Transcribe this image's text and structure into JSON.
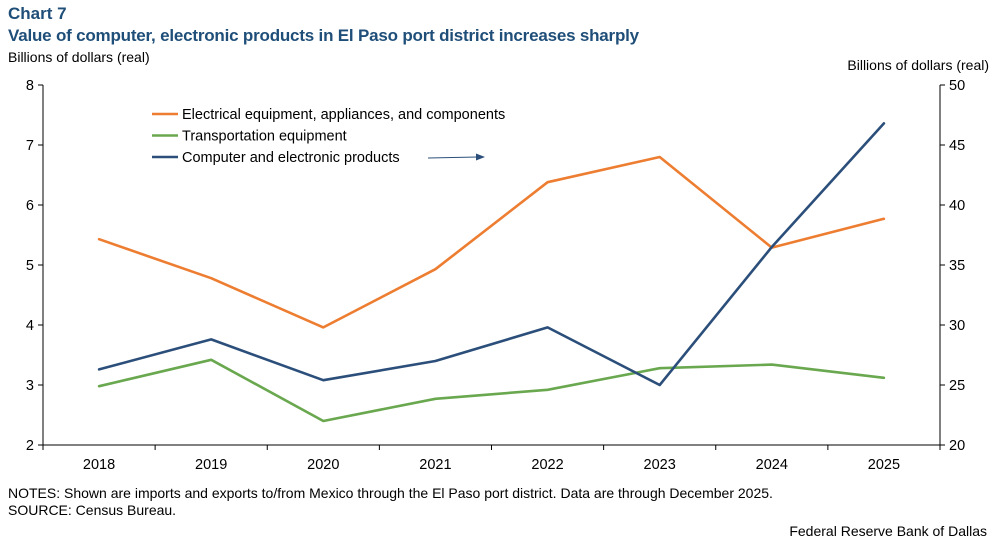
{
  "header": {
    "chart_number": "Chart 7",
    "title": "Value of computer, electronic products in El Paso port district increases sharply"
  },
  "footer": {
    "notes": "NOTES: Shown are imports and exports to/from Mexico through the El Paso port district. Data are  through December 2025.",
    "source": "SOURCE: Census Bureau.",
    "credit": "Federal Reserve Bank of Dallas"
  },
  "colors": {
    "title": "#1f4e79",
    "electrical": "#ed7d31",
    "transportation": "#6aa84f",
    "computer": "#2b4f7a",
    "axis": "#000000"
  },
  "chart_data": {
    "type": "line",
    "title": "Value of computer, electronic products in El Paso port district increases sharply",
    "categories": [
      "2018",
      "2019",
      "2020",
      "2021",
      "2022",
      "2023",
      "2024",
      "2025"
    ],
    "ylabel_left": "Billions of dollars (real)",
    "ylabel_right": "Billions of dollars (real)",
    "ylim_left": [
      2,
      8
    ],
    "ylim_right": [
      20,
      50
    ],
    "yticks_left": [
      "2",
      "3",
      "4",
      "5",
      "6",
      "7",
      "8"
    ],
    "yticks_right": [
      "20",
      "25",
      "30",
      "35",
      "40",
      "45",
      "50"
    ],
    "grid": false,
    "legend_position": "top-left",
    "series": [
      {
        "key": "electrical",
        "name": "Electrical equipment, appliances, and components",
        "axis": "left",
        "values": [
          5.43,
          4.78,
          3.96,
          4.93,
          6.38,
          6.8,
          5.29,
          5.77
        ]
      },
      {
        "key": "transportation",
        "name": "Transportation equipment",
        "axis": "left",
        "values": [
          2.98,
          3.42,
          2.4,
          2.77,
          2.92,
          3.28,
          3.34,
          3.12
        ]
      },
      {
        "key": "computer",
        "name": "Computer and electronic products",
        "axis": "right",
        "values": [
          26.3,
          28.8,
          25.4,
          27.0,
          29.8,
          25.0,
          36.5,
          46.8
        ]
      }
    ],
    "annotation": "arrow pointing right toward right axis"
  }
}
